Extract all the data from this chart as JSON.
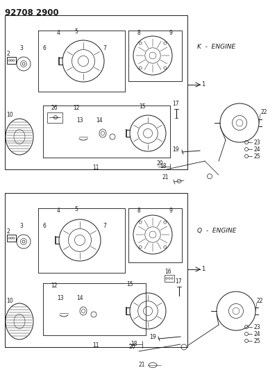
{
  "title": "92708 2900",
  "bg_color": "#ffffff",
  "diagram_color": "#1a1a1a",
  "k_engine_label": "K  -  ENGINE",
  "q_engine_label": "Q  -  ENGINE",
  "fig_width": 3.99,
  "fig_height": 5.33,
  "dpi": 100
}
